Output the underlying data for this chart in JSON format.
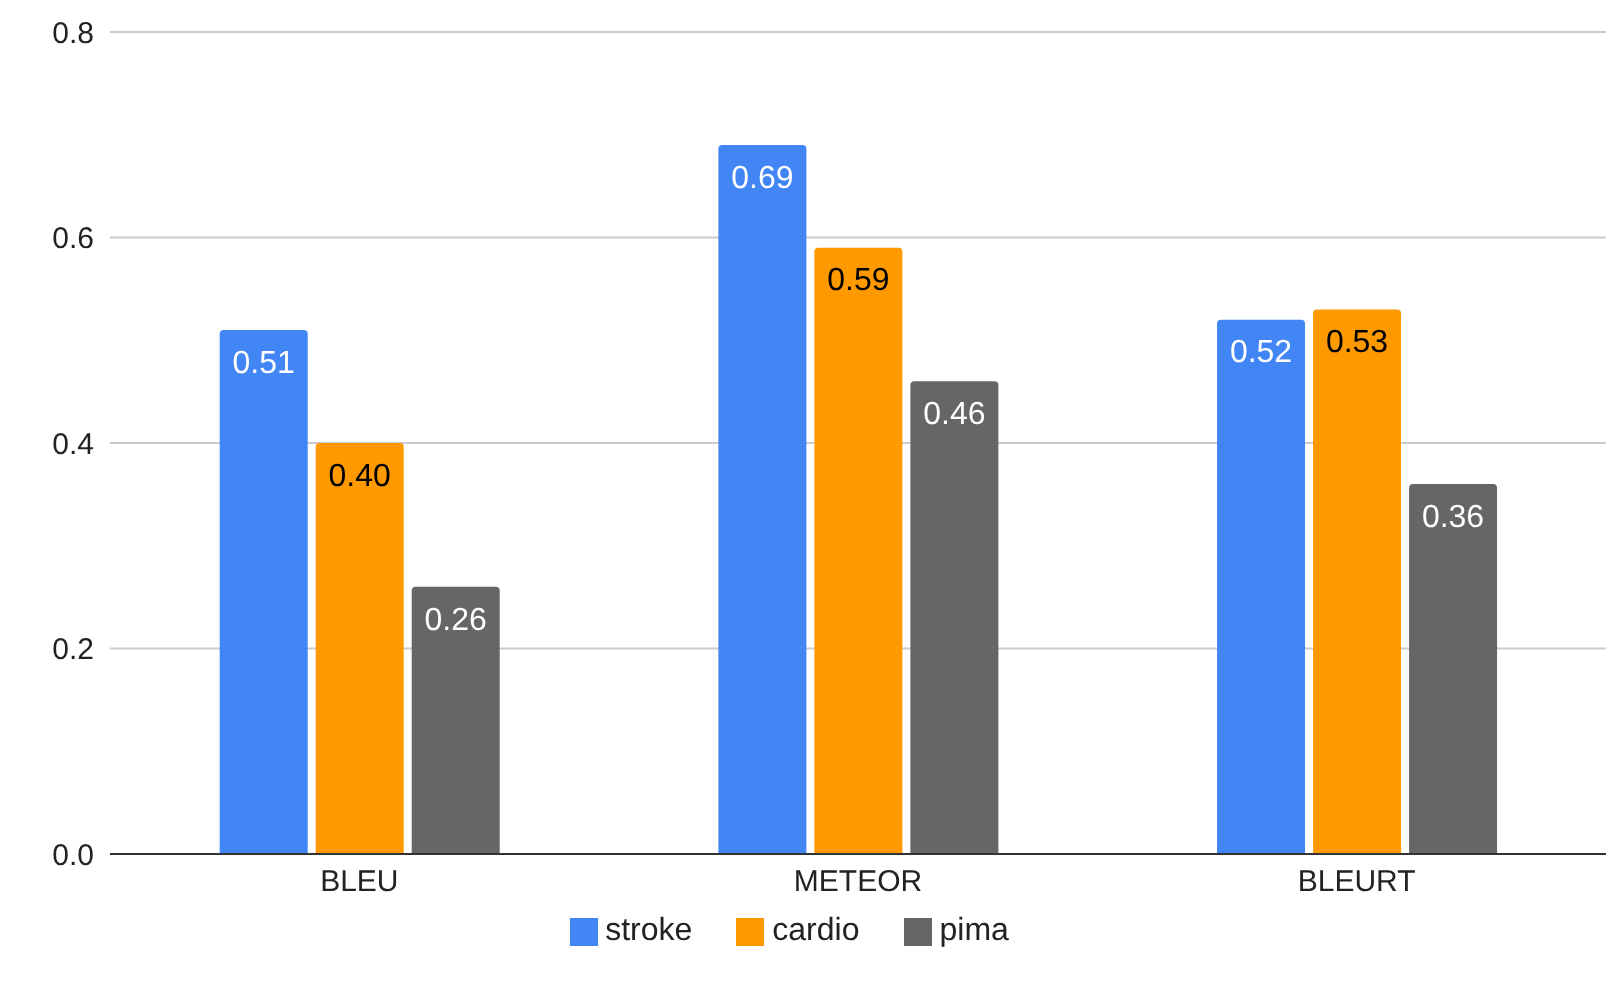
{
  "chart_data": {
    "type": "bar",
    "categories": [
      "BLEU",
      "METEOR",
      "BLEURT"
    ],
    "series": [
      {
        "name": "stroke",
        "color": "#4285f4",
        "values": [
          0.51,
          0.69,
          0.52
        ],
        "value_labels": [
          "0.51",
          "0.69",
          "0.52"
        ]
      },
      {
        "name": "cardio",
        "color": "#ff9900",
        "values": [
          0.4,
          0.59,
          0.53
        ],
        "value_labels": [
          "0.40",
          "0.59",
          "0.53"
        ]
      },
      {
        "name": "pima",
        "color": "#666666",
        "values": [
          0.26,
          0.46,
          0.36
        ],
        "value_labels": [
          "0.26",
          "0.46",
          "0.36"
        ]
      }
    ],
    "ylim": [
      0,
      0.8
    ],
    "yticks": [
      {
        "value": 0,
        "label": "0.0"
      },
      {
        "value": 0.2,
        "label": "0.2"
      },
      {
        "value": 0.4,
        "label": "0.4"
      },
      {
        "value": 0.6,
        "label": "0.6"
      },
      {
        "value": 0.8,
        "label": "0.8"
      }
    ],
    "grid": "y",
    "legend": "bottom"
  }
}
